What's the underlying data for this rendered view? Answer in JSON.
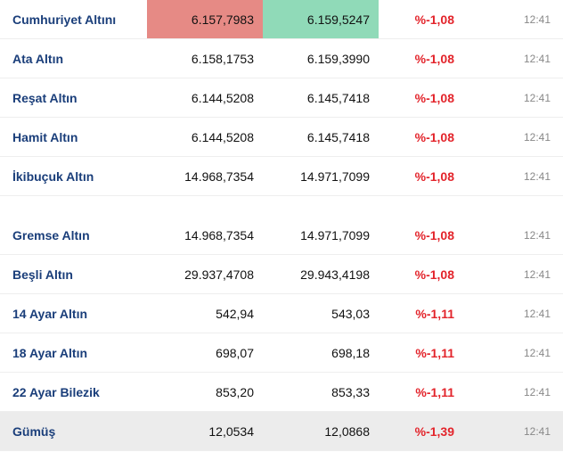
{
  "colors": {
    "name": "#1a3e7a",
    "value": "#111111",
    "neg": "#e3242b",
    "time": "#888888",
    "hi_red": "#e68a85",
    "hi_green": "#90dab8",
    "shaded": "#ececec",
    "border": "#eeeeee"
  },
  "rows": [
    {
      "name": "Cumhuriyet Altını",
      "buy": "6.157,7983",
      "sell": "6.159,5247",
      "change": "%-1,08",
      "time": "12:41",
      "hi_red": true,
      "hi_green": true
    },
    {
      "name": "Ata Altın",
      "buy": "6.158,1753",
      "sell": "6.159,3990",
      "change": "%-1,08",
      "time": "12:41"
    },
    {
      "name": "Reşat Altın",
      "buy": "6.144,5208",
      "sell": "6.145,7418",
      "change": "%-1,08",
      "time": "12:41"
    },
    {
      "name": "Hamit Altın",
      "buy": "6.144,5208",
      "sell": "6.145,7418",
      "change": "%-1,08",
      "time": "12:41"
    },
    {
      "name": "İkibuçuk Altın",
      "buy": "14.968,7354",
      "sell": "14.971,7099",
      "change": "%-1,08",
      "time": "12:41"
    },
    {
      "spacer": true
    },
    {
      "name": "Gremse Altın",
      "buy": "14.968,7354",
      "sell": "14.971,7099",
      "change": "%-1,08",
      "time": "12:41"
    },
    {
      "name": "Beşli Altın",
      "buy": "29.937,4708",
      "sell": "29.943,4198",
      "change": "%-1,08",
      "time": "12:41"
    },
    {
      "name": "14 Ayar Altın",
      "buy": "542,94",
      "sell": "543,03",
      "change": "%-1,11",
      "time": "12:41"
    },
    {
      "name": "18 Ayar Altın",
      "buy": "698,07",
      "sell": "698,18",
      "change": "%-1,11",
      "time": "12:41"
    },
    {
      "name": "22 Ayar Bilezik",
      "buy": "853,20",
      "sell": "853,33",
      "change": "%-1,11",
      "time": "12:41"
    },
    {
      "name": "Gümüş",
      "buy": "12,0534",
      "sell": "12,0868",
      "change": "%-1,39",
      "time": "12:41",
      "shaded": true
    }
  ]
}
